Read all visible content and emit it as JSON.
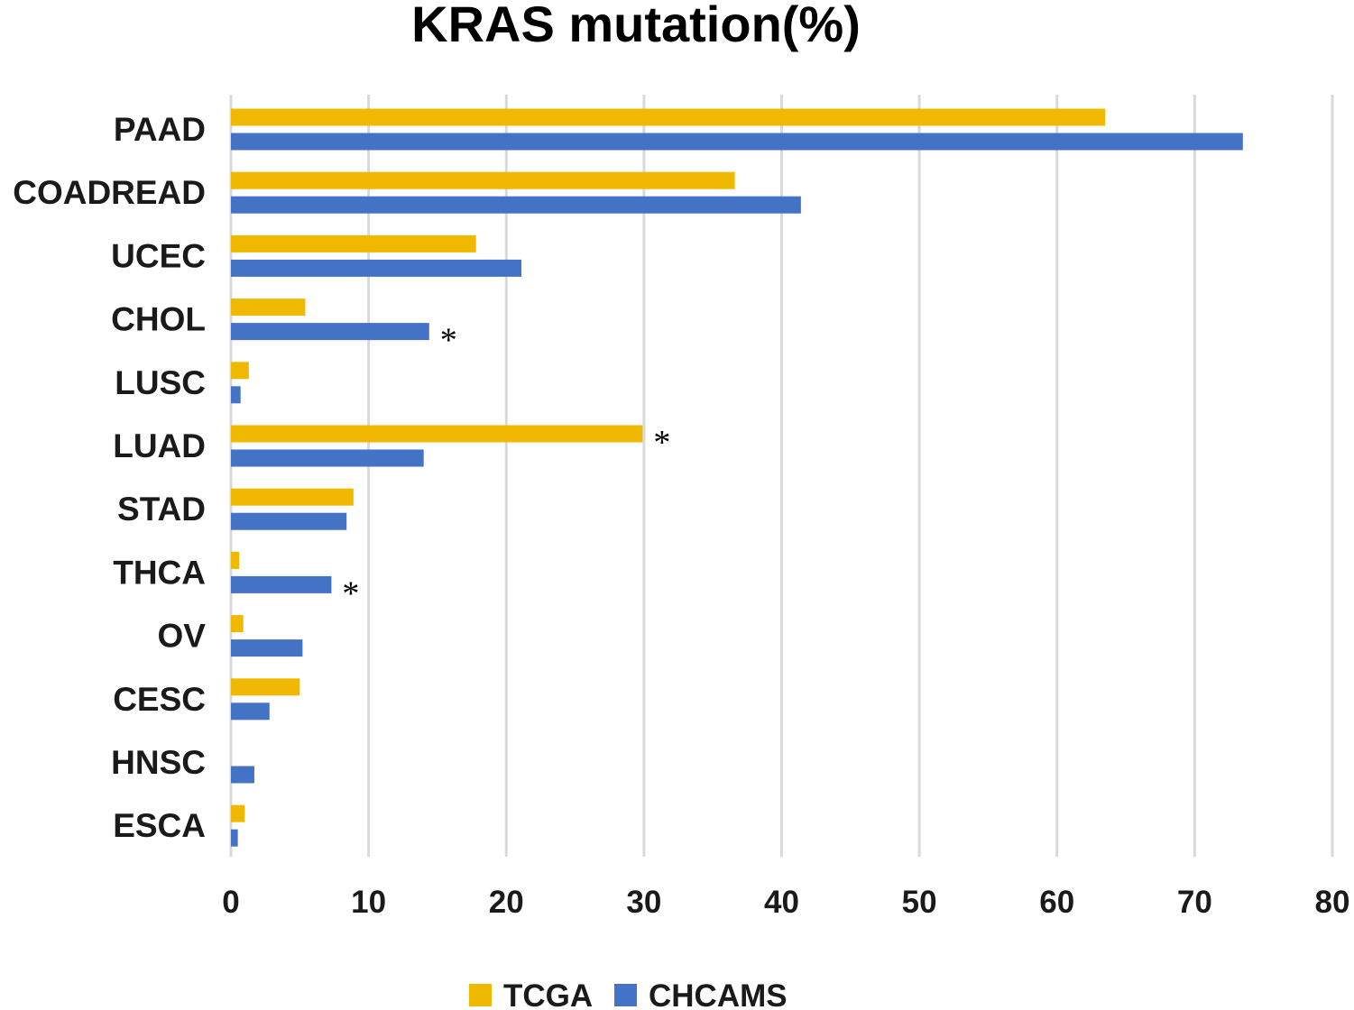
{
  "chart_data": {
    "type": "bar",
    "orientation": "horizontal",
    "title": "KRAS mutation(%)",
    "xlabel": "",
    "ylabel": "",
    "categories": [
      "PAAD",
      "COADREAD",
      "UCEC",
      "CHOL",
      "LUSC",
      "LUAD",
      "STAD",
      "THCA",
      "OV",
      "CESC",
      "HNSC",
      "ESCA"
    ],
    "series": [
      {
        "name": "TCGA",
        "color": "#f0b800",
        "values": [
          63.5,
          36.6,
          17.8,
          5.4,
          1.3,
          29.9,
          8.9,
          0.6,
          0.9,
          5.0,
          0.0,
          1.0
        ]
      },
      {
        "name": "CHCAMS",
        "color": "#4472c4",
        "values": [
          73.5,
          41.4,
          21.1,
          14.4,
          0.7,
          14.0,
          8.4,
          7.3,
          5.2,
          2.8,
          1.7,
          0.5
        ]
      }
    ],
    "xlim": [
      0,
      80
    ],
    "xticks": [
      "0",
      "10",
      "20",
      "30",
      "40",
      "50",
      "60",
      "70",
      "80"
    ],
    "grid": "vertical gridlines on",
    "legend": "bottom",
    "annotations": [
      {
        "text": "*",
        "category": "CHOL",
        "series": "CHCAMS"
      },
      {
        "text": "*",
        "category": "LUAD",
        "series": "TCGA"
      },
      {
        "text": "*",
        "category": "THCA",
        "series": "CHCAMS"
      }
    ]
  }
}
